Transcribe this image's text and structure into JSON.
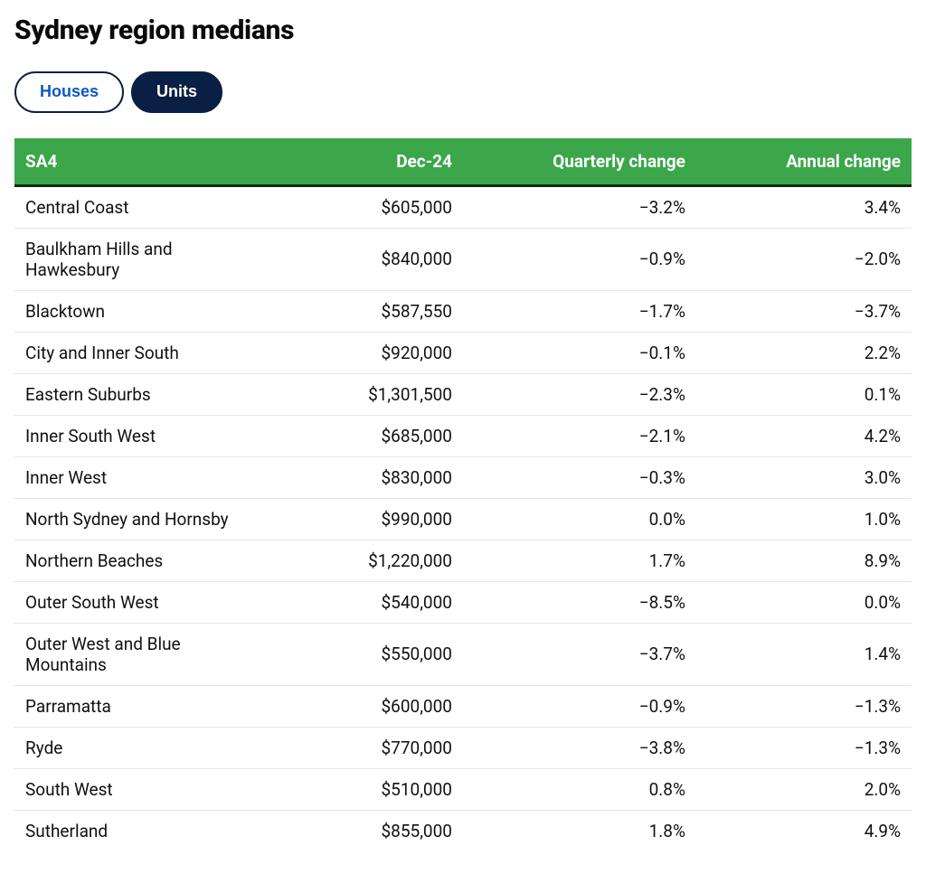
{
  "title": "Sydney region medians",
  "tabs": {
    "houses": {
      "label": "Houses",
      "selected": false
    },
    "units": {
      "label": "Units",
      "selected": true
    }
  },
  "table": {
    "type": "table",
    "header_bg": "#3ba64a",
    "header_text_color": "#ffffff",
    "header_underline_color": "#0a2a12",
    "row_border_color": "#e6e6e6",
    "body_text_color": "#111111",
    "header_fontsize": 19,
    "body_fontsize": 19,
    "columns": [
      {
        "key": "sa4",
        "label": "SA4",
        "align": "left",
        "width_pct": 26
      },
      {
        "key": "value",
        "label": "Dec-24",
        "align": "right",
        "width_pct": 24
      },
      {
        "key": "quarterly",
        "label": "Quarterly change",
        "align": "right",
        "width_pct": 26
      },
      {
        "key": "annual",
        "label": "Annual change",
        "align": "right",
        "width_pct": 24
      }
    ],
    "rows": [
      {
        "sa4": "Central Coast",
        "value": "$605,000",
        "quarterly": "−3.2%",
        "annual": "3.4%"
      },
      {
        "sa4": "Baulkham Hills and Hawkesbury",
        "value": "$840,000",
        "quarterly": "−0.9%",
        "annual": "−2.0%"
      },
      {
        "sa4": "Blacktown",
        "value": "$587,550",
        "quarterly": "−1.7%",
        "annual": "−3.7%"
      },
      {
        "sa4": "City and Inner South",
        "value": "$920,000",
        "quarterly": "−0.1%",
        "annual": "2.2%"
      },
      {
        "sa4": "Eastern Suburbs",
        "value": "$1,301,500",
        "quarterly": "−2.3%",
        "annual": "0.1%"
      },
      {
        "sa4": "Inner South West",
        "value": "$685,000",
        "quarterly": "−2.1%",
        "annual": "4.2%"
      },
      {
        "sa4": "Inner West",
        "value": "$830,000",
        "quarterly": "−0.3%",
        "annual": "3.0%"
      },
      {
        "sa4": "North Sydney and Hornsby",
        "value": "$990,000",
        "quarterly": "0.0%",
        "annual": "1.0%"
      },
      {
        "sa4": "Northern Beaches",
        "value": "$1,220,000",
        "quarterly": "1.7%",
        "annual": "8.9%"
      },
      {
        "sa4": "Outer South West",
        "value": "$540,000",
        "quarterly": "−8.5%",
        "annual": "0.0%"
      },
      {
        "sa4": "Outer West and Blue Mountains",
        "value": "$550,000",
        "quarterly": "−3.7%",
        "annual": "1.4%"
      },
      {
        "sa4": "Parramatta",
        "value": "$600,000",
        "quarterly": "−0.9%",
        "annual": "−1.3%"
      },
      {
        "sa4": "Ryde",
        "value": "$770,000",
        "quarterly": "−3.8%",
        "annual": "−1.3%"
      },
      {
        "sa4": "South West",
        "value": "$510,000",
        "quarterly": "0.8%",
        "annual": "2.0%"
      },
      {
        "sa4": "Sutherland",
        "value": "$855,000",
        "quarterly": "1.8%",
        "annual": "4.9%"
      }
    ]
  }
}
